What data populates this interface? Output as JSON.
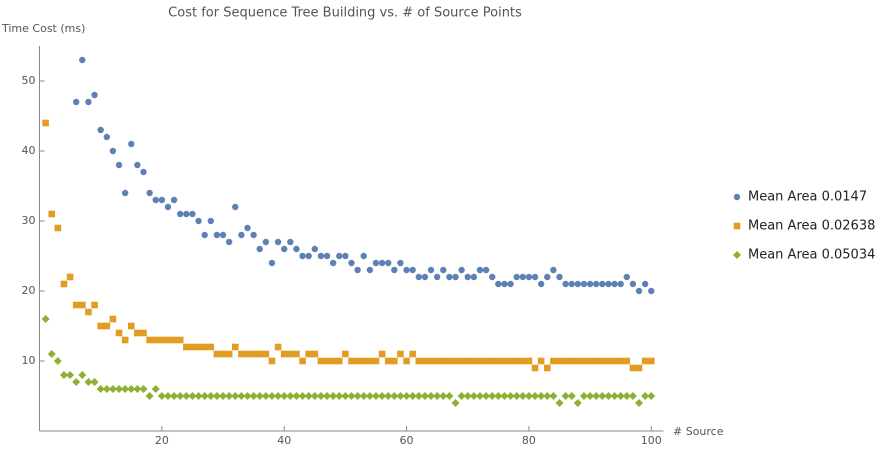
{
  "chart_data": {
    "type": "scatter",
    "title": "Cost for Sequence Tree Building vs. # of Source Points",
    "y_label": "Time Cost (ms)",
    "x_label": "# Source",
    "legend": "right",
    "xlim": [
      0,
      102
    ],
    "ylim": [
      0,
      55
    ],
    "xticks": [
      20,
      40,
      60,
      80,
      100
    ],
    "yticks": [
      10,
      20,
      30,
      40,
      50
    ],
    "x": [
      1,
      2,
      3,
      4,
      5,
      6,
      7,
      8,
      9,
      10,
      11,
      12,
      13,
      14,
      15,
      16,
      17,
      18,
      19,
      20,
      21,
      22,
      23,
      24,
      25,
      26,
      27,
      28,
      29,
      30,
      31,
      32,
      33,
      34,
      35,
      36,
      37,
      38,
      39,
      40,
      41,
      42,
      43,
      44,
      45,
      46,
      47,
      48,
      49,
      50,
      51,
      52,
      53,
      54,
      55,
      56,
      57,
      58,
      59,
      60,
      61,
      62,
      63,
      64,
      65,
      66,
      67,
      68,
      69,
      70,
      71,
      72,
      73,
      74,
      75,
      76,
      77,
      78,
      79,
      80,
      81,
      82,
      83,
      84,
      85,
      86,
      87,
      88,
      89,
      90,
      91,
      92,
      93,
      94,
      95,
      96,
      97,
      98,
      99,
      100
    ],
    "series": [
      {
        "name": "Mean Area 0.0147",
        "color": "#5e81b5",
        "marker": "circle",
        "values": [
          null,
          null,
          null,
          null,
          null,
          47,
          53,
          47,
          48,
          43,
          42,
          40,
          38,
          34,
          41,
          38,
          37,
          34,
          33,
          33,
          32,
          33,
          31,
          31,
          31,
          30,
          28,
          30,
          28,
          28,
          27,
          32,
          28,
          29,
          28,
          26,
          27,
          24,
          27,
          26,
          27,
          26,
          25,
          25,
          26,
          25,
          25,
          24,
          25,
          25,
          24,
          23,
          25,
          23,
          24,
          24,
          24,
          23,
          24,
          23,
          23,
          22,
          22,
          23,
          22,
          23,
          22,
          22,
          23,
          22,
          22,
          23,
          23,
          22,
          21,
          21,
          21,
          22,
          22,
          22,
          22,
          21,
          22,
          23,
          22,
          21,
          21,
          21,
          21,
          21,
          21,
          21,
          21,
          21,
          21,
          22,
          21,
          20,
          21,
          20
        ]
      },
      {
        "name": "Mean Area 0.02638",
        "color": "#e19c24",
        "marker": "square",
        "values": [
          44,
          31,
          29,
          21,
          22,
          18,
          18,
          17,
          18,
          15,
          15,
          16,
          14,
          13,
          15,
          14,
          14,
          13,
          13,
          13,
          13,
          13,
          13,
          12,
          12,
          12,
          12,
          12,
          11,
          11,
          11,
          12,
          11,
          11,
          11,
          11,
          11,
          10,
          12,
          11,
          11,
          11,
          10,
          11,
          11,
          10,
          10,
          10,
          10,
          11,
          10,
          10,
          10,
          10,
          10,
          11,
          10,
          10,
          11,
          10,
          11,
          10,
          10,
          10,
          10,
          10,
          10,
          10,
          10,
          10,
          10,
          10,
          10,
          10,
          10,
          10,
          10,
          10,
          10,
          10,
          9,
          10,
          9,
          10,
          10,
          10,
          10,
          10,
          10,
          10,
          10,
          10,
          10,
          10,
          10,
          10,
          9,
          9,
          10,
          10
        ]
      },
      {
        "name": "Mean Area 0.05034",
        "color": "#8fb032",
        "marker": "diamond",
        "values": [
          16,
          11,
          10,
          8,
          8,
          7,
          8,
          7,
          7,
          6,
          6,
          6,
          6,
          6,
          6,
          6,
          6,
          5,
          6,
          5,
          5,
          5,
          5,
          5,
          5,
          5,
          5,
          5,
          5,
          5,
          5,
          5,
          5,
          5,
          5,
          5,
          5,
          5,
          5,
          5,
          5,
          5,
          5,
          5,
          5,
          5,
          5,
          5,
          5,
          5,
          5,
          5,
          5,
          5,
          5,
          5,
          5,
          5,
          5,
          5,
          5,
          5,
          5,
          5,
          5,
          5,
          5,
          4,
          5,
          5,
          5,
          5,
          5,
          5,
          5,
          5,
          5,
          5,
          5,
          5,
          5,
          5,
          5,
          5,
          4,
          5,
          5,
          4,
          5,
          5,
          5,
          5,
          5,
          5,
          5,
          5,
          5,
          4,
          5,
          5
        ]
      }
    ]
  }
}
